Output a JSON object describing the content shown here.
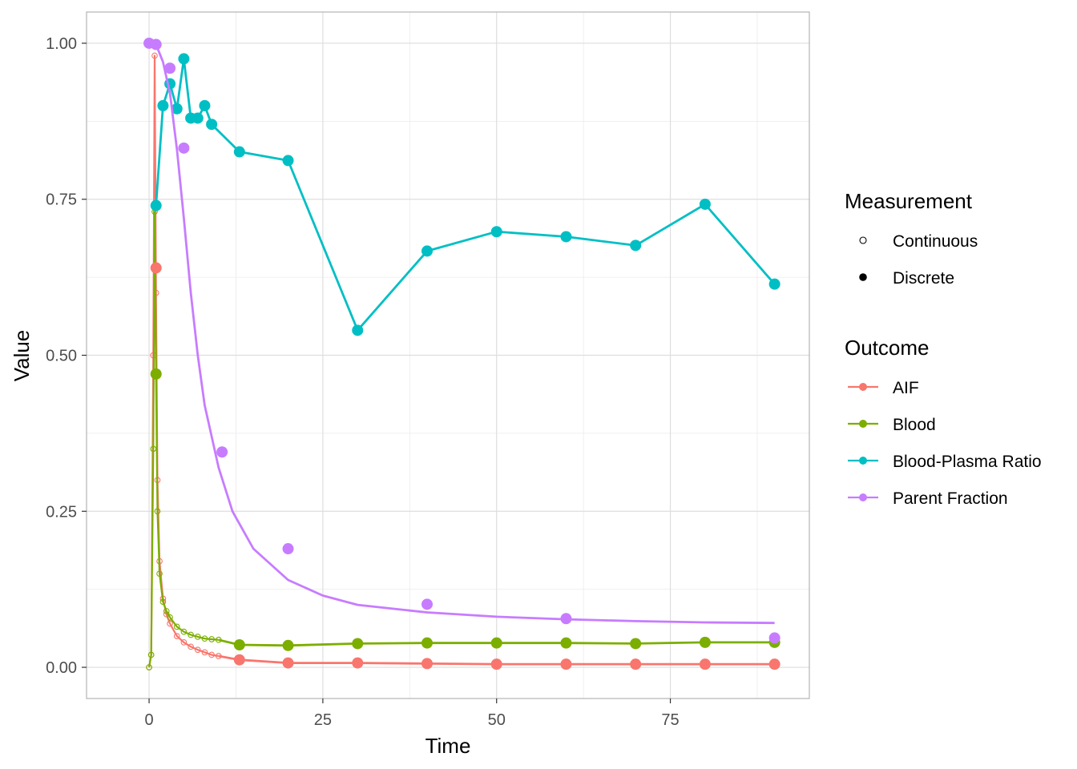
{
  "chart_data": {
    "type": "line",
    "xlabel": "Time",
    "ylabel": "Value",
    "xlim": [
      -9,
      95
    ],
    "ylim": [
      -0.05,
      1.05
    ],
    "x_ticks": [
      0,
      25,
      50,
      75
    ],
    "x_tick_labels": [
      "0",
      "25",
      "50",
      "75"
    ],
    "y_ticks": [
      0,
      0.25,
      0.5,
      0.75,
      1.0
    ],
    "y_tick_labels": [
      "0.00",
      "0.25",
      "0.50",
      "0.75",
      "1.00"
    ],
    "grid": true,
    "legend_position": "right",
    "legends": [
      {
        "title": "Measurement",
        "entries": [
          {
            "label": "Continuous",
            "marker": "hollow-circle"
          },
          {
            "label": "Discrete",
            "marker": "filled-circle"
          }
        ]
      },
      {
        "title": "Outcome",
        "entries": [
          {
            "label": "AIF",
            "color": "#F8766D"
          },
          {
            "label": "Blood",
            "color": "#7CAE00"
          },
          {
            "label": "Blood-Plasma Ratio",
            "color": "#00BFC4"
          },
          {
            "label": "Parent Fraction",
            "color": "#C77CFF"
          }
        ]
      }
    ],
    "series": [
      {
        "name": "AIF",
        "color": "#F8766D",
        "continuous": [
          {
            "x": 0,
            "y": 0
          },
          {
            "x": 0.3,
            "y": 0.02
          },
          {
            "x": 0.6,
            "y": 0.5
          },
          {
            "x": 0.8,
            "y": 0.98
          },
          {
            "x": 1.0,
            "y": 0.6
          },
          {
            "x": 1.2,
            "y": 0.3
          },
          {
            "x": 1.5,
            "y": 0.17
          },
          {
            "x": 2.0,
            "y": 0.11
          },
          {
            "x": 2.5,
            "y": 0.085
          },
          {
            "x": 3,
            "y": 0.07
          },
          {
            "x": 4,
            "y": 0.05
          },
          {
            "x": 5,
            "y": 0.04
          },
          {
            "x": 6,
            "y": 0.033
          },
          {
            "x": 7,
            "y": 0.028
          },
          {
            "x": 8,
            "y": 0.024
          },
          {
            "x": 9,
            "y": 0.02
          },
          {
            "x": 10,
            "y": 0.018
          }
        ],
        "discrete": [
          {
            "x": 1,
            "y": 0.64
          },
          {
            "x": 13,
            "y": 0.012
          },
          {
            "x": 20,
            "y": 0.007
          },
          {
            "x": 30,
            "y": 0.007
          },
          {
            "x": 40,
            "y": 0.006
          },
          {
            "x": 50,
            "y": 0.005
          },
          {
            "x": 60,
            "y": 0.005
          },
          {
            "x": 70,
            "y": 0.005
          },
          {
            "x": 80,
            "y": 0.005
          },
          {
            "x": 90,
            "y": 0.005
          }
        ]
      },
      {
        "name": "Blood",
        "color": "#7CAE00",
        "continuous": [
          {
            "x": 0,
            "y": 0
          },
          {
            "x": 0.3,
            "y": 0.02
          },
          {
            "x": 0.6,
            "y": 0.35
          },
          {
            "x": 0.8,
            "y": 0.73
          },
          {
            "x": 1.0,
            "y": 0.47
          },
          {
            "x": 1.2,
            "y": 0.25
          },
          {
            "x": 1.5,
            "y": 0.15
          },
          {
            "x": 2.0,
            "y": 0.105
          },
          {
            "x": 2.5,
            "y": 0.09
          },
          {
            "x": 3,
            "y": 0.08
          },
          {
            "x": 4,
            "y": 0.065
          },
          {
            "x": 5,
            "y": 0.057
          },
          {
            "x": 6,
            "y": 0.052
          },
          {
            "x": 7,
            "y": 0.049
          },
          {
            "x": 8,
            "y": 0.046
          },
          {
            "x": 9,
            "y": 0.045
          },
          {
            "x": 10,
            "y": 0.044
          }
        ],
        "discrete": [
          {
            "x": 1,
            "y": 0.47
          },
          {
            "x": 13,
            "y": 0.036
          },
          {
            "x": 20,
            "y": 0.035
          },
          {
            "x": 30,
            "y": 0.038
          },
          {
            "x": 40,
            "y": 0.039
          },
          {
            "x": 50,
            "y": 0.039
          },
          {
            "x": 60,
            "y": 0.039
          },
          {
            "x": 70,
            "y": 0.038
          },
          {
            "x": 80,
            "y": 0.04
          },
          {
            "x": 90,
            "y": 0.04
          }
        ]
      },
      {
        "name": "Blood-Plasma Ratio",
        "color": "#00BFC4",
        "continuous": [],
        "discrete": [
          {
            "x": 1,
            "y": 0.74
          },
          {
            "x": 2,
            "y": 0.9
          },
          {
            "x": 3,
            "y": 0.935
          },
          {
            "x": 4,
            "y": 0.895
          },
          {
            "x": 5,
            "y": 0.975
          },
          {
            "x": 6,
            "y": 0.88
          },
          {
            "x": 7,
            "y": 0.88
          },
          {
            "x": 8,
            "y": 0.9
          },
          {
            "x": 9,
            "y": 0.87
          },
          {
            "x": 13,
            "y": 0.826
          },
          {
            "x": 20,
            "y": 0.812
          },
          {
            "x": 30,
            "y": 0.54
          },
          {
            "x": 40,
            "y": 0.667
          },
          {
            "x": 50,
            "y": 0.698
          },
          {
            "x": 60,
            "y": 0.69
          },
          {
            "x": 70,
            "y": 0.676
          },
          {
            "x": 80,
            "y": 0.742
          },
          {
            "x": 90,
            "y": 0.614
          }
        ]
      },
      {
        "name": "Parent Fraction",
        "color": "#C77CFF",
        "continuous": [],
        "discrete": [
          {
            "x": 0,
            "y": 1.0
          },
          {
            "x": 1,
            "y": 0.998
          },
          {
            "x": 3,
            "y": 0.96
          },
          {
            "x": 5,
            "y": 0.832
          },
          {
            "x": 10.5,
            "y": 0.345
          },
          {
            "x": 20,
            "y": 0.19
          },
          {
            "x": 40,
            "y": 0.101
          },
          {
            "x": 60,
            "y": 0.078
          },
          {
            "x": 90,
            "y": 0.047
          }
        ],
        "fit": [
          {
            "x": 0,
            "y": 1.0
          },
          {
            "x": 1,
            "y": 0.998
          },
          {
            "x": 2,
            "y": 0.97
          },
          {
            "x": 3,
            "y": 0.92
          },
          {
            "x": 4,
            "y": 0.83
          },
          {
            "x": 5,
            "y": 0.72
          },
          {
            "x": 6,
            "y": 0.6
          },
          {
            "x": 7,
            "y": 0.5
          },
          {
            "x": 8,
            "y": 0.42
          },
          {
            "x": 10,
            "y": 0.32
          },
          {
            "x": 12,
            "y": 0.25
          },
          {
            "x": 15,
            "y": 0.19
          },
          {
            "x": 20,
            "y": 0.14
          },
          {
            "x": 25,
            "y": 0.115
          },
          {
            "x": 30,
            "y": 0.1
          },
          {
            "x": 40,
            "y": 0.088
          },
          {
            "x": 50,
            "y": 0.081
          },
          {
            "x": 60,
            "y": 0.077
          },
          {
            "x": 70,
            "y": 0.074
          },
          {
            "x": 80,
            "y": 0.072
          },
          {
            "x": 90,
            "y": 0.071
          }
        ]
      }
    ]
  }
}
